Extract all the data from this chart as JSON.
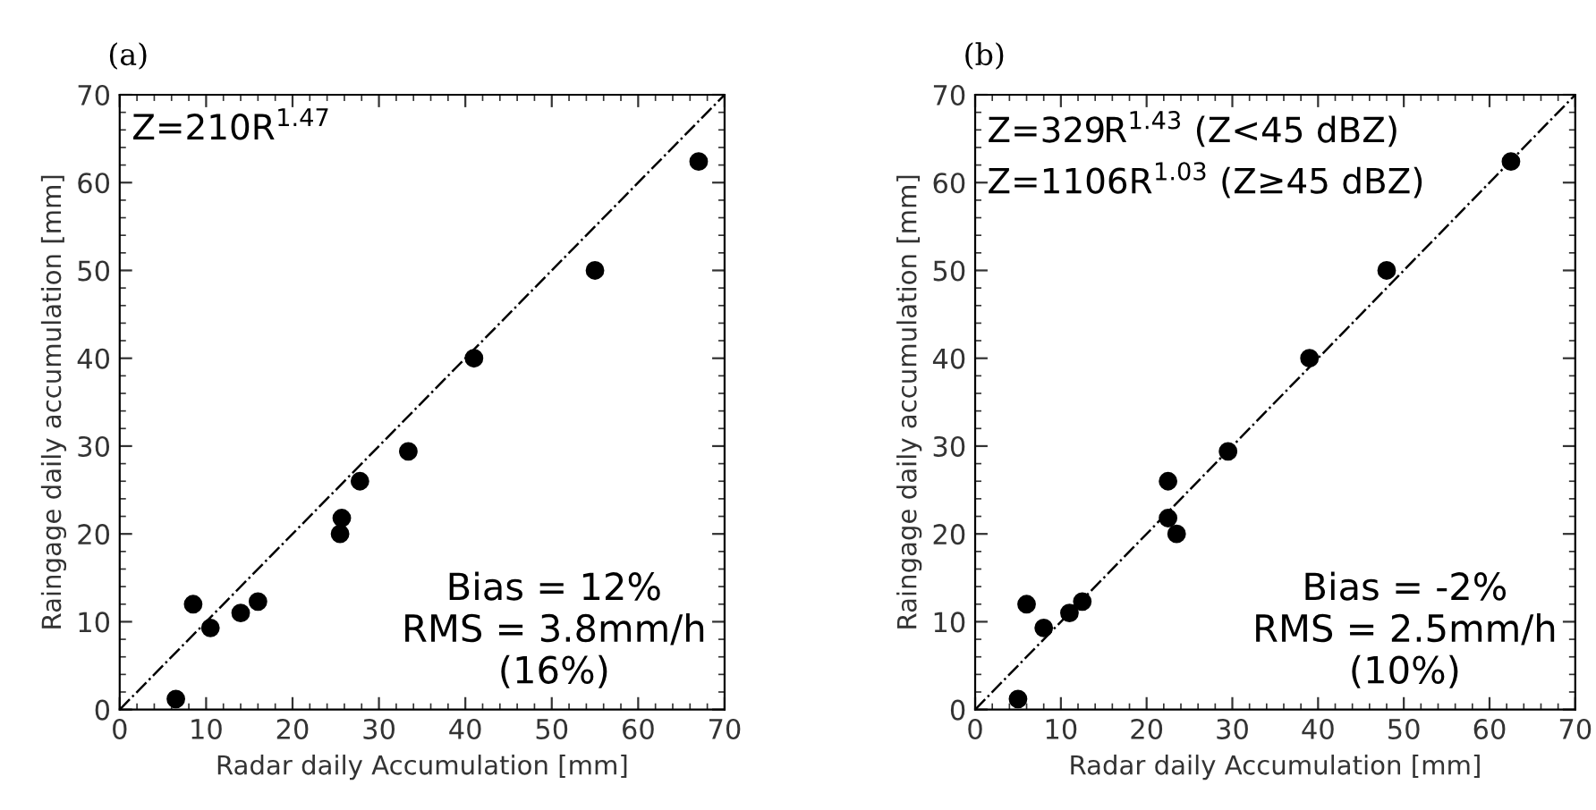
{
  "chart_data": [
    {
      "type": "scatter",
      "title": "(a)",
      "xlabel": "Radar daily Accumulation [mm]",
      "ylabel": "Raingage daily accumulation [mm]",
      "annotations": [
        "Z=210R$^{1.47}$",
        "Bias = 12%\nRMS = 3.8mm/h\n(16%)"
      ],
      "xlim": [
        0,
        70
      ],
      "ylim": [
        0,
        70
      ],
      "xticks": [
        0,
        10,
        20,
        30,
        40,
        50,
        60,
        70
      ],
      "yticks": [
        0,
        10,
        20,
        30,
        40,
        50,
        60,
        70
      ],
      "grid": false,
      "legend": false,
      "series": [
        {
          "type": "scatter",
          "color": "#000000",
          "marker": "circle",
          "x": [
            6.5,
            8.5,
            10.5,
            14,
            16,
            25.5,
            25.7,
            27.8,
            33.4,
            41,
            55,
            67
          ],
          "values": [
            1.2,
            12,
            9.3,
            11,
            12.3,
            20,
            21.8,
            26,
            29.4,
            40,
            50,
            62.4
          ]
        },
        {
          "type": "line",
          "color": "#000000",
          "line_style": "dashdot",
          "x": [
            0,
            70
          ],
          "values": [
            0,
            70
          ]
        }
      ]
    },
    {
      "type": "scatter",
      "title": "(b)",
      "xlabel": "Radar daily Accumulation [mm]",
      "ylabel": "Raingage daily accumulation [mm]",
      "annotations": [
        "Z=329R$^{1.43}$ (Z<45 dBZ)\nZ=1106R$^{1.03}$ (Z≥45 dBZ)",
        "Bias = -2%\nRMS = 2.5mm/h\n(10%)"
      ],
      "xlim": [
        0,
        70
      ],
      "ylim": [
        0,
        70
      ],
      "xticks": [
        0,
        10,
        20,
        30,
        40,
        50,
        60,
        70
      ],
      "yticks": [
        0,
        10,
        20,
        30,
        40,
        50,
        60,
        70
      ],
      "grid": false,
      "legend": false,
      "series": [
        {
          "type": "scatter",
          "color": "#000000",
          "marker": "circle",
          "x": [
            5,
            6,
            8,
            11,
            12.5,
            22.5,
            22.5,
            23.5,
            29.5,
            39,
            48,
            62.5
          ],
          "values": [
            1.2,
            12,
            9.3,
            11,
            12.3,
            21.8,
            26,
            20,
            29.4,
            40,
            50,
            62.4
          ]
        },
        {
          "type": "line",
          "color": "#000000",
          "line_style": "dashdot",
          "x": [
            0,
            70
          ],
          "values": [
            0,
            70
          ]
        }
      ]
    }
  ]
}
